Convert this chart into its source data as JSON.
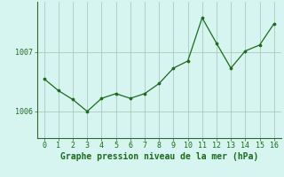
{
  "x": [
    0,
    1,
    2,
    3,
    4,
    5,
    6,
    7,
    8,
    9,
    10,
    11,
    12,
    13,
    14,
    15,
    16
  ],
  "y": [
    1006.55,
    1006.35,
    1006.2,
    1006.0,
    1006.22,
    1006.3,
    1006.22,
    1006.3,
    1006.47,
    1006.73,
    1006.85,
    1007.58,
    1007.15,
    1006.73,
    1007.02,
    1007.12,
    1007.48
  ],
  "line_color": "#1a6b1a",
  "marker_color": "#1a6b1a",
  "bg_color": "#d6f5f0",
  "grid_color": "#aaccbb",
  "xlabel": "Graphe pression niveau de la mer (hPa)",
  "xlabel_color": "#1a6b1a",
  "yticks": [
    1006,
    1007
  ],
  "ylim": [
    1005.55,
    1007.85
  ],
  "xlim": [
    -0.5,
    16.5
  ],
  "xtick_labels": [
    "0",
    "1",
    "2",
    "3",
    "4",
    "5",
    "6",
    "7",
    "8",
    "9",
    "10",
    "11",
    "12",
    "13",
    "14",
    "15",
    "16"
  ],
  "tick_color": "#1a6b1a",
  "spine_color": "#336633",
  "tick_fontsize": 6.0,
  "xlabel_fontsize": 7.0
}
